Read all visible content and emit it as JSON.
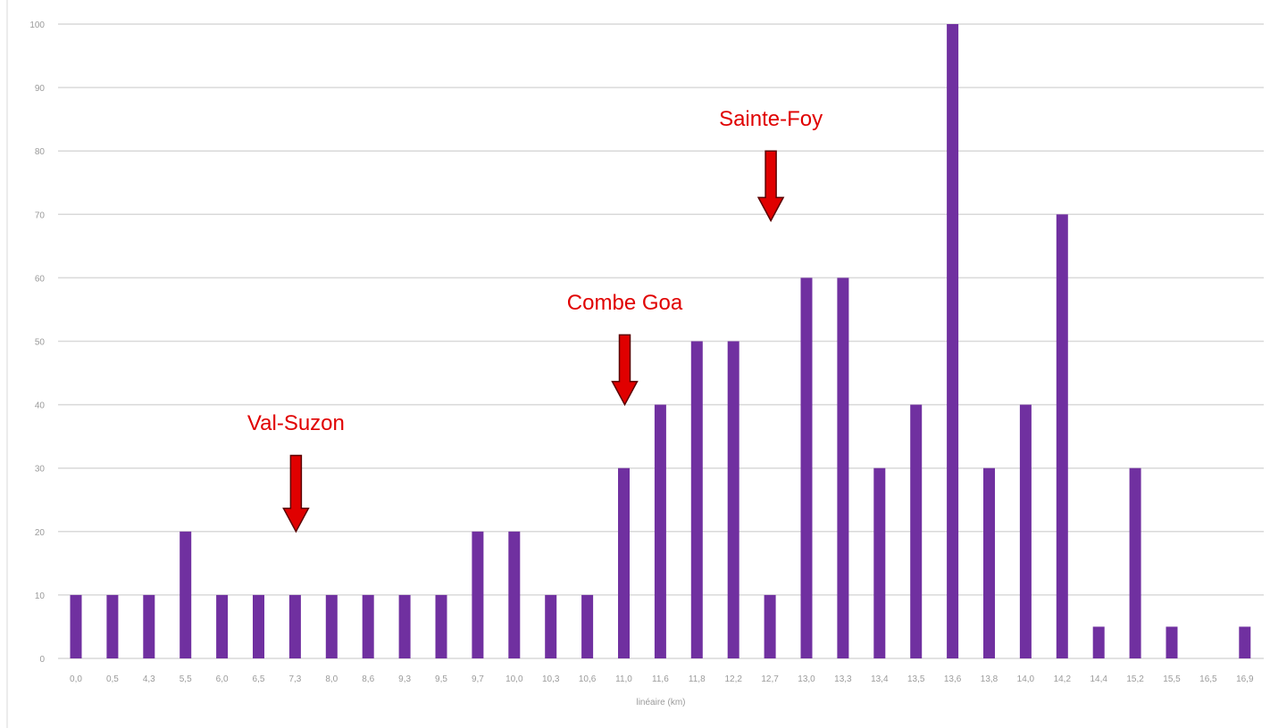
{
  "chart_data": {
    "type": "bar",
    "categories": [
      "0,0",
      "0,5",
      "4,3",
      "5,5",
      "6,0",
      "6,5",
      "7,3",
      "8,0",
      "8,6",
      "9,3",
      "9,5",
      "9,7",
      "10,0",
      "10,3",
      "10,6",
      "11,0",
      "11,6",
      "11,8",
      "12,2",
      "12,7",
      "13,0",
      "13,3",
      "13,4",
      "13,5",
      "13,6",
      "13,8",
      "14,0",
      "14,2",
      "14,4",
      "15,2",
      "15,5",
      "16,5",
      "16,9"
    ],
    "values": [
      10,
      10,
      10,
      20,
      10,
      10,
      10,
      10,
      10,
      10,
      10,
      20,
      20,
      10,
      10,
      30,
      40,
      50,
      50,
      10,
      60,
      60,
      30,
      40,
      100,
      30,
      40,
      70,
      5,
      30,
      5,
      0,
      5
    ],
    "xlabel": "linéaire (km)",
    "ylabel": "",
    "ylim": [
      0,
      100
    ],
    "yticks": [
      0,
      10,
      20,
      30,
      40,
      50,
      60,
      70,
      80,
      90,
      100
    ],
    "grid": true,
    "bar_color": "#7030a0",
    "annotations": [
      {
        "text": "Val-Suzon",
        "category": "7,3",
        "arrow_y_top": 32,
        "arrow_y_bottom": 20,
        "text_y": 36
      },
      {
        "text": "Combe Goa",
        "category": "11,0",
        "arrow_y_top": 51,
        "arrow_y_bottom": 40,
        "text_y": 55
      },
      {
        "text": "Sainte-Foy",
        "category": "12,7",
        "arrow_y_top": 80,
        "arrow_y_bottom": 69,
        "text_y": 84
      }
    ],
    "annotation_color": "#e00000"
  }
}
